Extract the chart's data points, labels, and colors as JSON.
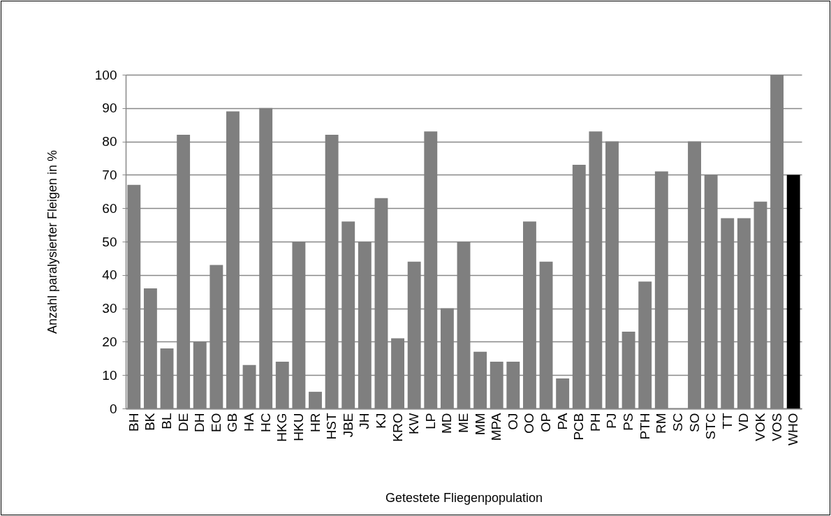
{
  "chart_data": {
    "type": "bar",
    "xlabel": "Getestete Fliegenpopulation",
    "ylabel": "Anzahl paralysierter Fleigen in %",
    "categories": [
      "BH",
      "BK",
      "BL",
      "DE",
      "DH",
      "EO",
      "GB",
      "HA",
      "HC",
      "HKG",
      "HKU",
      "HR",
      "HST",
      "JBE",
      "JH",
      "KJ",
      "KRO",
      "KW",
      "LP",
      "MD",
      "ME",
      "MM",
      "MPA",
      "OJ",
      "OO",
      "OP",
      "PA",
      "PCB",
      "PH",
      "PJ",
      "PS",
      "PTH",
      "RM",
      "SC",
      "SO",
      "STC",
      "TT",
      "VD",
      "VOK",
      "VOS",
      "WHO"
    ],
    "values": [
      67,
      36,
      18,
      82,
      20,
      43,
      89,
      13,
      90,
      14,
      50,
      5,
      82,
      56,
      50,
      63,
      21,
      44,
      83,
      30,
      50,
      17,
      14,
      14,
      56,
      44,
      9,
      73,
      83,
      80,
      23,
      38,
      71,
      0,
      80,
      70,
      57,
      57,
      62,
      100,
      70
    ],
    "colors": [
      "#7f7f7f",
      "#7f7f7f",
      "#7f7f7f",
      "#7f7f7f",
      "#7f7f7f",
      "#7f7f7f",
      "#7f7f7f",
      "#7f7f7f",
      "#7f7f7f",
      "#7f7f7f",
      "#7f7f7f",
      "#7f7f7f",
      "#7f7f7f",
      "#7f7f7f",
      "#7f7f7f",
      "#7f7f7f",
      "#7f7f7f",
      "#7f7f7f",
      "#7f7f7f",
      "#7f7f7f",
      "#7f7f7f",
      "#7f7f7f",
      "#7f7f7f",
      "#7f7f7f",
      "#7f7f7f",
      "#7f7f7f",
      "#7f7f7f",
      "#7f7f7f",
      "#7f7f7f",
      "#7f7f7f",
      "#7f7f7f",
      "#7f7f7f",
      "#7f7f7f",
      "#7f7f7f",
      "#7f7f7f",
      "#7f7f7f",
      "#7f7f7f",
      "#7f7f7f",
      "#7f7f7f",
      "#7f7f7f",
      "#000000"
    ],
    "ylim": [
      0,
      100
    ],
    "yticks": [
      0,
      10,
      20,
      30,
      40,
      50,
      60,
      70,
      80,
      90,
      100
    ],
    "grid": "y",
    "legend": false
  }
}
